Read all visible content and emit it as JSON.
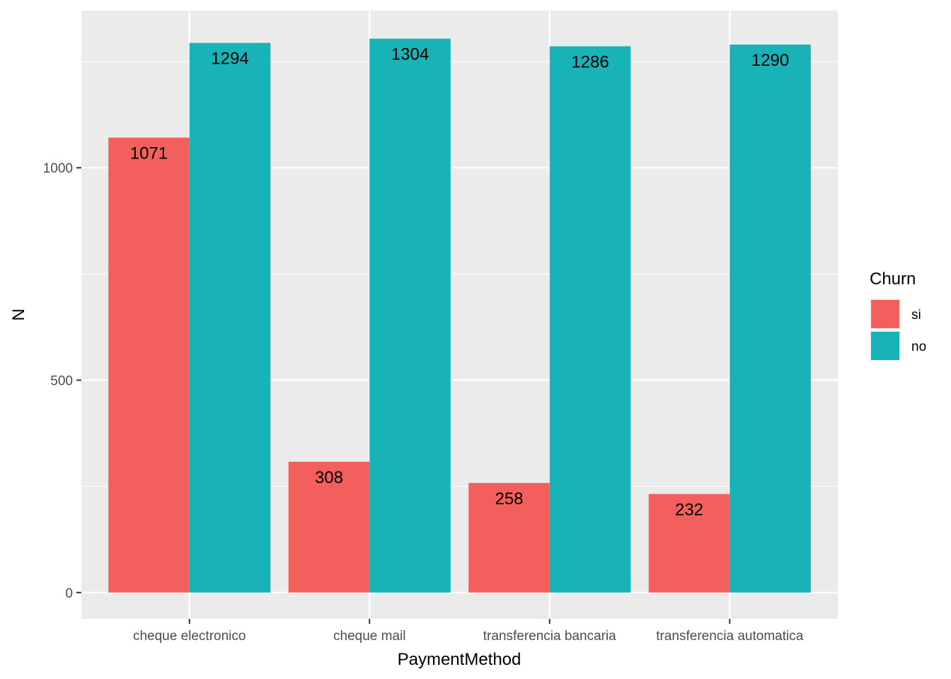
{
  "chart_data": {
    "type": "bar",
    "categories": [
      "cheque electronico",
      "cheque mail",
      "transferencia bancaria",
      "transferencia automatica"
    ],
    "series": [
      {
        "name": "si",
        "values": [
          1071,
          308,
          258,
          232
        ],
        "color": "#F8766D"
      },
      {
        "name": "no",
        "values": [
          1294,
          1304,
          1286,
          1290
        ],
        "color": "#00BFC4"
      }
    ],
    "xlabel": "PaymentMethod",
    "ylabel": "N",
    "ylim": [
      -62,
      1370
    ],
    "yticks": [
      0,
      500,
      1000
    ],
    "legend": {
      "title": "Churn",
      "position": "right"
    },
    "grid": true,
    "panel_background": "#EBEBEB",
    "bar_colors_rendered": {
      "si": "#F25F5C",
      "no": "#17B3B7"
    }
  }
}
